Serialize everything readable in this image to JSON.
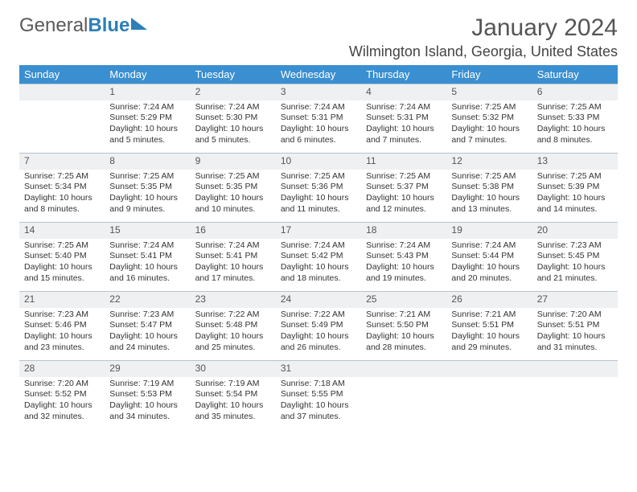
{
  "logo": {
    "part1": "General",
    "part2": "Blue"
  },
  "title": "January 2024",
  "location": "Wilmington Island, Georgia, United States",
  "weekdays": [
    "Sunday",
    "Monday",
    "Tuesday",
    "Wednesday",
    "Thursday",
    "Friday",
    "Saturday"
  ],
  "colors": {
    "header_bg": "#3a8fd0",
    "header_text": "#ffffff",
    "daynum_bg": "#eef0f2",
    "border": "#b8c2cc",
    "text": "#333333"
  },
  "cells": [
    {
      "day": "",
      "sunrise": "",
      "sunset": "",
      "daylight": ""
    },
    {
      "day": "1",
      "sunrise": "Sunrise: 7:24 AM",
      "sunset": "Sunset: 5:29 PM",
      "daylight": "Daylight: 10 hours and 5 minutes."
    },
    {
      "day": "2",
      "sunrise": "Sunrise: 7:24 AM",
      "sunset": "Sunset: 5:30 PM",
      "daylight": "Daylight: 10 hours and 5 minutes."
    },
    {
      "day": "3",
      "sunrise": "Sunrise: 7:24 AM",
      "sunset": "Sunset: 5:31 PM",
      "daylight": "Daylight: 10 hours and 6 minutes."
    },
    {
      "day": "4",
      "sunrise": "Sunrise: 7:24 AM",
      "sunset": "Sunset: 5:31 PM",
      "daylight": "Daylight: 10 hours and 7 minutes."
    },
    {
      "day": "5",
      "sunrise": "Sunrise: 7:25 AM",
      "sunset": "Sunset: 5:32 PM",
      "daylight": "Daylight: 10 hours and 7 minutes."
    },
    {
      "day": "6",
      "sunrise": "Sunrise: 7:25 AM",
      "sunset": "Sunset: 5:33 PM",
      "daylight": "Daylight: 10 hours and 8 minutes."
    },
    {
      "day": "7",
      "sunrise": "Sunrise: 7:25 AM",
      "sunset": "Sunset: 5:34 PM",
      "daylight": "Daylight: 10 hours and 8 minutes."
    },
    {
      "day": "8",
      "sunrise": "Sunrise: 7:25 AM",
      "sunset": "Sunset: 5:35 PM",
      "daylight": "Daylight: 10 hours and 9 minutes."
    },
    {
      "day": "9",
      "sunrise": "Sunrise: 7:25 AM",
      "sunset": "Sunset: 5:35 PM",
      "daylight": "Daylight: 10 hours and 10 minutes."
    },
    {
      "day": "10",
      "sunrise": "Sunrise: 7:25 AM",
      "sunset": "Sunset: 5:36 PM",
      "daylight": "Daylight: 10 hours and 11 minutes."
    },
    {
      "day": "11",
      "sunrise": "Sunrise: 7:25 AM",
      "sunset": "Sunset: 5:37 PM",
      "daylight": "Daylight: 10 hours and 12 minutes."
    },
    {
      "day": "12",
      "sunrise": "Sunrise: 7:25 AM",
      "sunset": "Sunset: 5:38 PM",
      "daylight": "Daylight: 10 hours and 13 minutes."
    },
    {
      "day": "13",
      "sunrise": "Sunrise: 7:25 AM",
      "sunset": "Sunset: 5:39 PM",
      "daylight": "Daylight: 10 hours and 14 minutes."
    },
    {
      "day": "14",
      "sunrise": "Sunrise: 7:25 AM",
      "sunset": "Sunset: 5:40 PM",
      "daylight": "Daylight: 10 hours and 15 minutes."
    },
    {
      "day": "15",
      "sunrise": "Sunrise: 7:24 AM",
      "sunset": "Sunset: 5:41 PM",
      "daylight": "Daylight: 10 hours and 16 minutes."
    },
    {
      "day": "16",
      "sunrise": "Sunrise: 7:24 AM",
      "sunset": "Sunset: 5:41 PM",
      "daylight": "Daylight: 10 hours and 17 minutes."
    },
    {
      "day": "17",
      "sunrise": "Sunrise: 7:24 AM",
      "sunset": "Sunset: 5:42 PM",
      "daylight": "Daylight: 10 hours and 18 minutes."
    },
    {
      "day": "18",
      "sunrise": "Sunrise: 7:24 AM",
      "sunset": "Sunset: 5:43 PM",
      "daylight": "Daylight: 10 hours and 19 minutes."
    },
    {
      "day": "19",
      "sunrise": "Sunrise: 7:24 AM",
      "sunset": "Sunset: 5:44 PM",
      "daylight": "Daylight: 10 hours and 20 minutes."
    },
    {
      "day": "20",
      "sunrise": "Sunrise: 7:23 AM",
      "sunset": "Sunset: 5:45 PM",
      "daylight": "Daylight: 10 hours and 21 minutes."
    },
    {
      "day": "21",
      "sunrise": "Sunrise: 7:23 AM",
      "sunset": "Sunset: 5:46 PM",
      "daylight": "Daylight: 10 hours and 23 minutes."
    },
    {
      "day": "22",
      "sunrise": "Sunrise: 7:23 AM",
      "sunset": "Sunset: 5:47 PM",
      "daylight": "Daylight: 10 hours and 24 minutes."
    },
    {
      "day": "23",
      "sunrise": "Sunrise: 7:22 AM",
      "sunset": "Sunset: 5:48 PM",
      "daylight": "Daylight: 10 hours and 25 minutes."
    },
    {
      "day": "24",
      "sunrise": "Sunrise: 7:22 AM",
      "sunset": "Sunset: 5:49 PM",
      "daylight": "Daylight: 10 hours and 26 minutes."
    },
    {
      "day": "25",
      "sunrise": "Sunrise: 7:21 AM",
      "sunset": "Sunset: 5:50 PM",
      "daylight": "Daylight: 10 hours and 28 minutes."
    },
    {
      "day": "26",
      "sunrise": "Sunrise: 7:21 AM",
      "sunset": "Sunset: 5:51 PM",
      "daylight": "Daylight: 10 hours and 29 minutes."
    },
    {
      "day": "27",
      "sunrise": "Sunrise: 7:20 AM",
      "sunset": "Sunset: 5:51 PM",
      "daylight": "Daylight: 10 hours and 31 minutes."
    },
    {
      "day": "28",
      "sunrise": "Sunrise: 7:20 AM",
      "sunset": "Sunset: 5:52 PM",
      "daylight": "Daylight: 10 hours and 32 minutes."
    },
    {
      "day": "29",
      "sunrise": "Sunrise: 7:19 AM",
      "sunset": "Sunset: 5:53 PM",
      "daylight": "Daylight: 10 hours and 34 minutes."
    },
    {
      "day": "30",
      "sunrise": "Sunrise: 7:19 AM",
      "sunset": "Sunset: 5:54 PM",
      "daylight": "Daylight: 10 hours and 35 minutes."
    },
    {
      "day": "31",
      "sunrise": "Sunrise: 7:18 AM",
      "sunset": "Sunset: 5:55 PM",
      "daylight": "Daylight: 10 hours and 37 minutes."
    },
    {
      "day": "",
      "sunrise": "",
      "sunset": "",
      "daylight": ""
    },
    {
      "day": "",
      "sunrise": "",
      "sunset": "",
      "daylight": ""
    },
    {
      "day": "",
      "sunrise": "",
      "sunset": "",
      "daylight": ""
    }
  ]
}
